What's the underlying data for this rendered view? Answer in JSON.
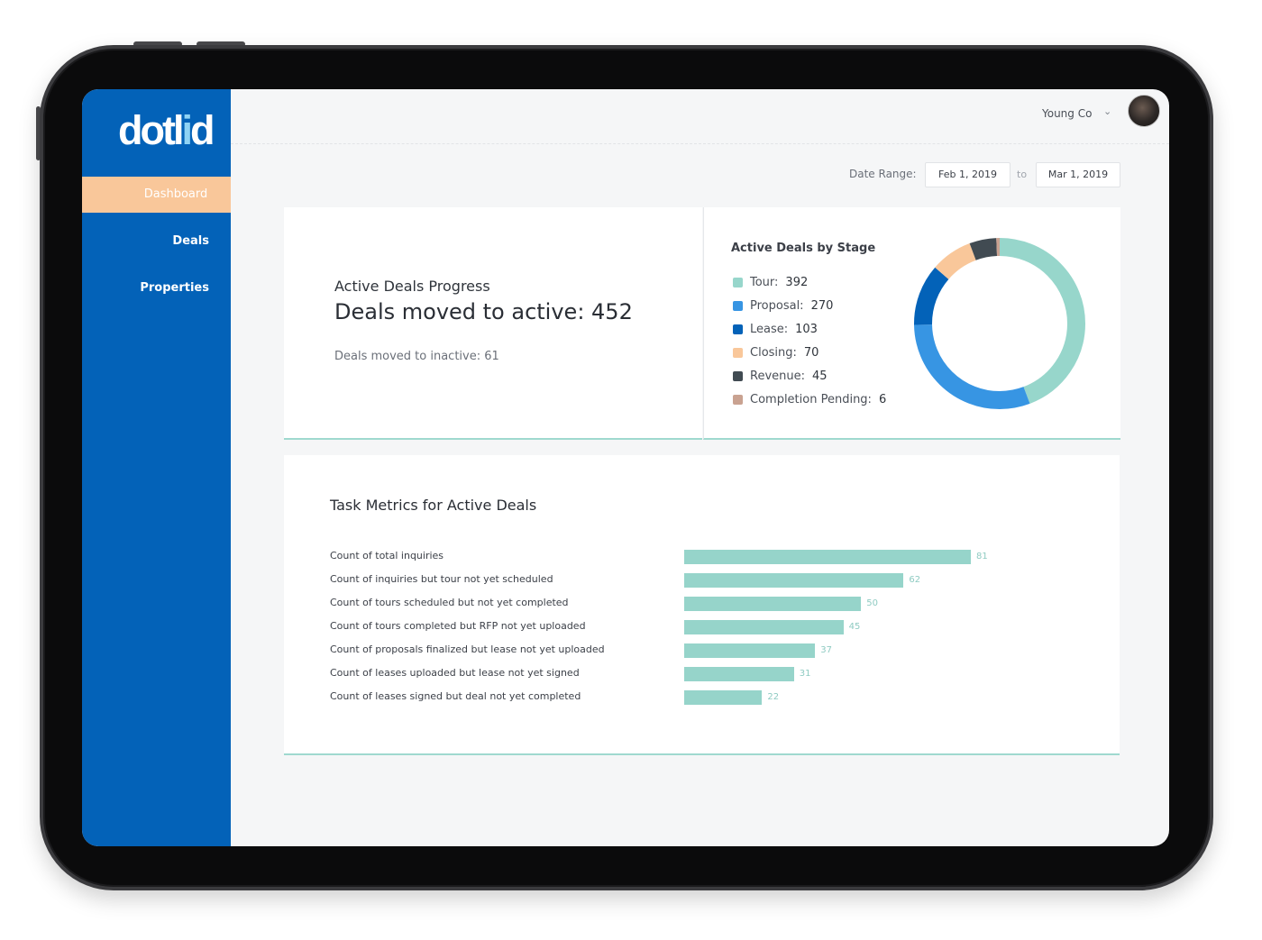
{
  "brand": {
    "logo_text_a": "dotl",
    "logo_text_b": "i",
    "logo_text_c": "d"
  },
  "sidebar": {
    "items": [
      {
        "label": "Dashboard",
        "active": true
      },
      {
        "label": "Deals",
        "active": false
      },
      {
        "label": "Properties",
        "active": false
      }
    ]
  },
  "header": {
    "user_name": "Young Co",
    "chevron_icon": "chevron-down-icon"
  },
  "date_range": {
    "label": "Date Range:",
    "from": "Feb 1, 2019",
    "to_word": "to",
    "to": "Mar 1, 2019"
  },
  "progress": {
    "label": "Active Deals Progress",
    "title": "Deals moved to active: 452",
    "subtitle": "Deals moved to inactive: 61"
  },
  "donut": {
    "title": "Active Deals by Stage",
    "chart_data": {
      "type": "pie",
      "series": [
        {
          "name": "Tour:",
          "value": 392,
          "color": "#97d6cb"
        },
        {
          "name": "Proposal:",
          "value": 270,
          "color": "#3795e3"
        },
        {
          "name": "Lease:",
          "value": 103,
          "color": "#0362b8"
        },
        {
          "name": "Closing:",
          "value": 70,
          "color": "#f9c79a"
        },
        {
          "name": "Revenue:",
          "value": 45,
          "color": "#414b52"
        },
        {
          "name": "Completion Pending:",
          "value": 6,
          "color": "#c9a291"
        }
      ]
    }
  },
  "tasks": {
    "title": "Task Metrics for Active Deals",
    "chart_data": {
      "type": "bar",
      "categories": [
        "Count of total inquiries",
        "Count of inquiries but tour not yet scheduled",
        "Count of tours scheduled but not yet completed",
        "Count of tours completed but RFP not yet uploaded",
        "Count of proposals finalized but lease not yet uploaded",
        "Count of leases uploaded but lease not yet signed",
        "Count of leases signed but deal not yet completed"
      ],
      "values": [
        81,
        62,
        50,
        45,
        37,
        31,
        22
      ],
      "xlim": [
        0,
        81
      ],
      "color": "#96d4ca"
    }
  }
}
